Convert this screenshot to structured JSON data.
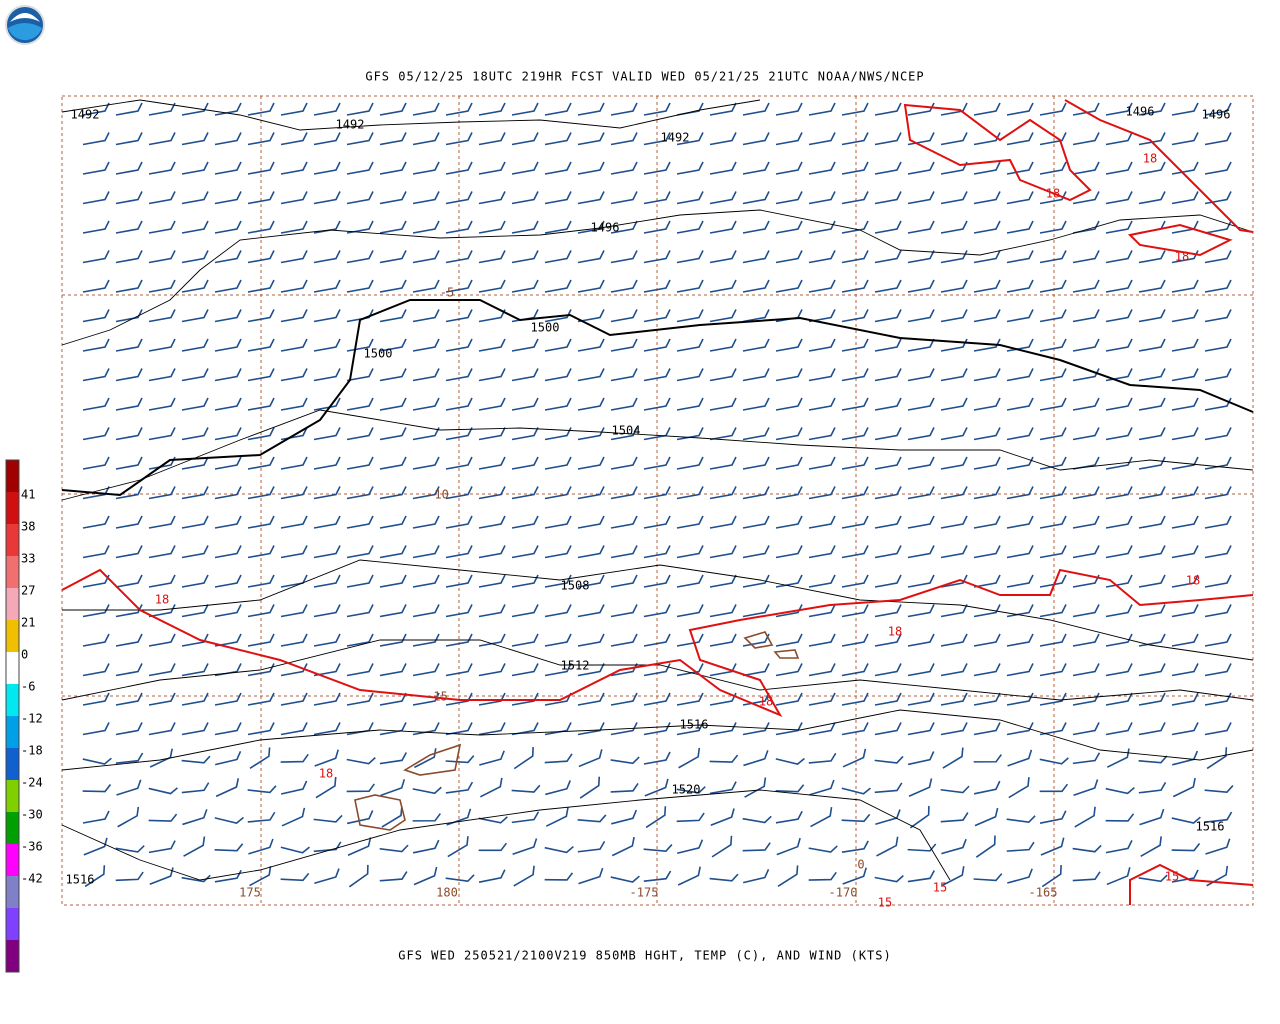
{
  "header": {
    "title": "GFS 05/12/25 18UTC 219HR FCST VALID WED 05/21/25 21UTC NOAA/NWS/NCEP"
  },
  "footer": {
    "caption": "GFS WED 250521/2100V219 850MB HGHT, TEMP (C), AND WIND (KTS)"
  },
  "colorbar": {
    "labels": [
      41,
      38,
      33,
      27,
      21,
      0,
      -6,
      -12,
      -18,
      -24,
      -30,
      -36,
      -42
    ],
    "colors": [
      "#a00000",
      "#d01010",
      "#e83838",
      "#f07070",
      "#f4a8b8",
      "#f0c000",
      "#ffffff",
      "#00e8f0",
      "#00a0e8",
      "#1060d0",
      "#80d000",
      "#00a000",
      "#ff00ff",
      "#8080c8",
      "#8040ff",
      "#800080"
    ]
  },
  "height_labels": [
    1492,
    1492,
    1492,
    1496,
    1496,
    1496,
    1500,
    1500,
    1504,
    1508,
    1512,
    1516,
    1520,
    1516,
    1516
  ],
  "temperature_labels": [
    18,
    18,
    18,
    18,
    18,
    18,
    18,
    18,
    15,
    15,
    15
  ],
  "grid_labels": [
    -5,
    -10,
    -15,
    0,
    175,
    180,
    -175,
    -170,
    -165
  ]
}
